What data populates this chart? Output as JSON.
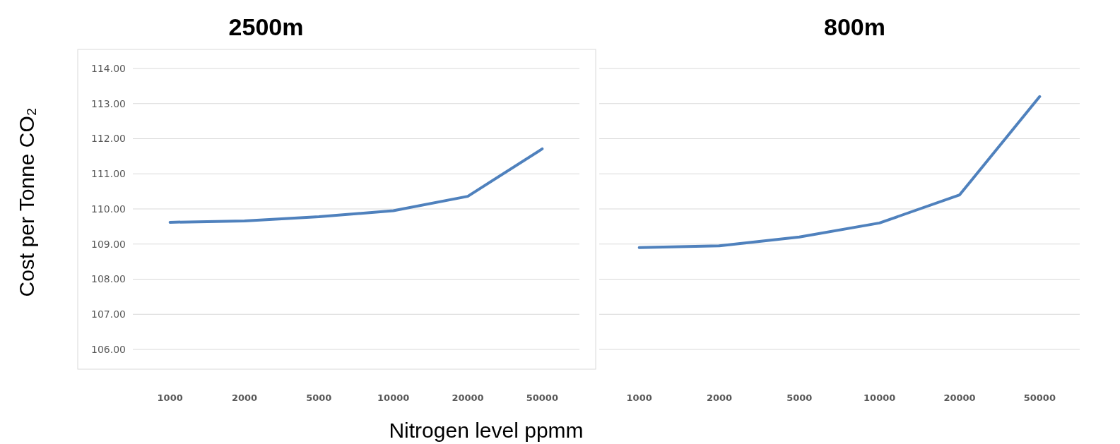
{
  "chart_data": [
    {
      "type": "line",
      "title": "2500m",
      "ylabel": "Cost per Tonne CO₂",
      "xlabel": "Nitrogen level ppmm",
      "categories": [
        "1000",
        "2000",
        "5000",
        "10000",
        "20000",
        "50000"
      ],
      "series": [
        {
          "color": "#4f81bd",
          "values": [
            109.62,
            109.66,
            109.78,
            109.95,
            110.36,
            111.71
          ]
        }
      ],
      "ylim": [
        106,
        114
      ],
      "yticks": [
        {
          "value": 106,
          "label": "106.00"
        },
        {
          "value": 107,
          "label": "107.00"
        },
        {
          "value": 108,
          "label": "108.00"
        },
        {
          "value": 109,
          "label": "109.00"
        },
        {
          "value": 110,
          "label": "110.00"
        },
        {
          "value": 111,
          "label": "111.00"
        },
        {
          "value": 112,
          "label": "112.00"
        },
        {
          "value": 113,
          "label": "113.00"
        },
        {
          "value": 114,
          "label": "114.00"
        }
      ],
      "grid": "y"
    },
    {
      "type": "line",
      "title": "800m",
      "categories": [
        "1000",
        "2000",
        "5000",
        "10000",
        "20000",
        "50000"
      ],
      "series": [
        {
          "color": "#4f81bd",
          "values": [
            108.9,
            108.95,
            109.2,
            109.6,
            110.4,
            113.2
          ]
        }
      ],
      "ylim": [
        106,
        114
      ],
      "yticks": [
        106,
        107,
        108,
        109,
        110,
        111,
        112,
        113,
        114
      ],
      "grid": "y",
      "tick_labels": "x"
    }
  ]
}
